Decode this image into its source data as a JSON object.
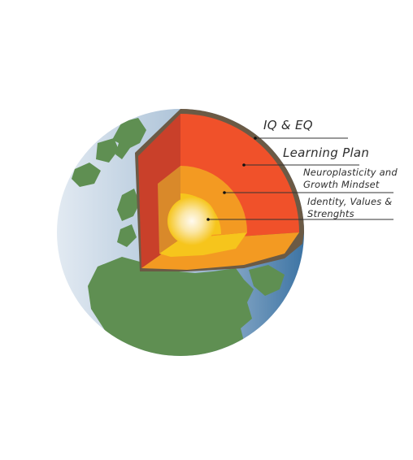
{
  "layers": {
    "crust": {
      "label": "IQ & EQ"
    },
    "mantle": {
      "label": "Learning Plan"
    },
    "outer_core": {
      "line1": "Neuroplasticity and",
      "line2": "Growth Mindset"
    },
    "inner_core": {
      "line1": "Identity, Values &",
      "line2": "Strenghts"
    }
  },
  "colors": {
    "ocean_light": "#dfe8f0",
    "ocean_dark": "#3f78a8",
    "land": "#5f8f52",
    "crust": "#6b5a45",
    "mantle": "#f0512a",
    "mantle_side": "#c9402a",
    "outer_core": "#f39a22",
    "inner_core": "#f6c51c",
    "core_glow": "#fff6d8",
    "leader_line": "#333333"
  }
}
